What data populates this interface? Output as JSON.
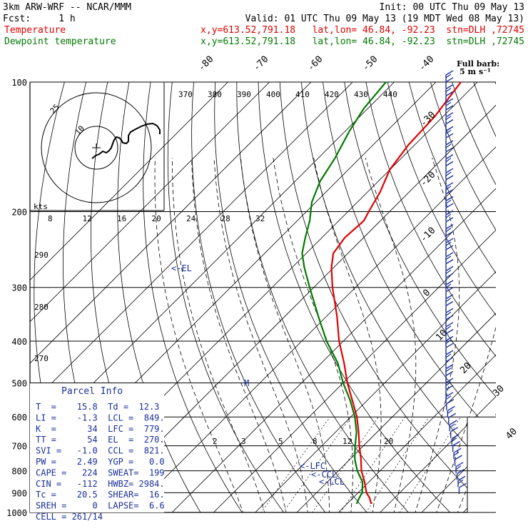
{
  "header": {
    "line1_left": "3km ARW-WRF -- NCAR/MMM",
    "line1_right": "Init: 00 UTC Thu 09 May 13",
    "line2_left": "Fcst:     1 h",
    "line2_right": "Valid: 01 UTC Thu 09 May 13 (19 MDT Wed 08 May 13)",
    "temp_label": "Temperature",
    "temp_info": "x,y=613.52,791.18   lat,lon= 46.84, -92.23  stn=DLH ,72745",
    "dew_label": "Dewpoint temperature",
    "dew_info": "x,y=613.52,791.18   lat,lon= 46.84, -92.23  stn=DLH ,72745"
  },
  "colors": {
    "temperature": "#e00000",
    "dewpoint": "#007a00",
    "wind": "#1a2f9a",
    "index_text": "#1a2f9a"
  },
  "chart_data": {
    "type": "line",
    "title": "",
    "pressure_ticks": [
      100,
      200,
      300,
      400,
      500,
      600,
      700,
      800,
      900,
      1000
    ],
    "pressure_range": [
      1000,
      100
    ],
    "isotherm_labels": [
      "-80",
      "-70",
      "-60",
      "-50",
      "-40",
      "-30",
      "-20",
      "-10",
      "0",
      "10",
      "20",
      "30",
      "40"
    ],
    "theta_labels": [
      "290",
      "280",
      "270"
    ],
    "theta_e_labels": [
      "370",
      "380",
      "390",
      "400",
      "410",
      "420",
      "430",
      "440"
    ],
    "mixing_ratio_labels": [
      "2",
      "3",
      "5",
      "8",
      "12",
      "20"
    ],
    "series": [
      {
        "name": "Temperature",
        "points": [
          [
            955,
            15.8
          ],
          [
            925,
            14.0
          ],
          [
            900,
            12.0
          ],
          [
            850,
            9.0
          ],
          [
            800,
            5.5
          ],
          [
            750,
            2.5
          ],
          [
            700,
            -1.0
          ],
          [
            650,
            -4.5
          ],
          [
            600,
            -8.5
          ],
          [
            550,
            -13.5
          ],
          [
            500,
            -19.0
          ],
          [
            450,
            -24.5
          ],
          [
            400,
            -31.0
          ],
          [
            350,
            -37.5
          ],
          [
            300,
            -45.5
          ],
          [
            270,
            -50.5
          ],
          [
            250,
            -53.5
          ],
          [
            230,
            -54.5
          ],
          [
            210,
            -54.0
          ],
          [
            200,
            -55.0
          ],
          [
            180,
            -57.0
          ],
          [
            160,
            -60.0
          ],
          [
            140,
            -61.5
          ],
          [
            120,
            -62.0
          ],
          [
            100,
            -64.0
          ]
        ]
      },
      {
        "name": "Dewpoint temperature",
        "points": [
          [
            955,
            12.3
          ],
          [
            925,
            11.5
          ],
          [
            900,
            11.0
          ],
          [
            850,
            8.5
          ],
          [
            800,
            4.5
          ],
          [
            750,
            1.0
          ],
          [
            700,
            -2.0
          ],
          [
            650,
            -5.0
          ],
          [
            600,
            -9.0
          ],
          [
            550,
            -14.0
          ],
          [
            500,
            -20.0
          ],
          [
            450,
            -26.0
          ],
          [
            400,
            -34.0
          ],
          [
            350,
            -42.0
          ],
          [
            300,
            -51.0
          ],
          [
            270,
            -57.0
          ],
          [
            250,
            -61.0
          ],
          [
            230,
            -64.0
          ],
          [
            210,
            -67.0
          ],
          [
            190,
            -71.0
          ],
          [
            170,
            -74.0
          ],
          [
            150,
            -76.0
          ],
          [
            130,
            -79.0
          ],
          [
            115,
            -81.0
          ],
          [
            100,
            -82.0
          ]
        ]
      }
    ],
    "levels": {
      "LFC": 779,
      "CCL": 821,
      "LCL": 849,
      "EL": 270
    }
  },
  "level_markers": {
    "el": "<-EL",
    "lfc": "<-LFC",
    "ccl": "<-CCL",
    "lcl": "<-LCL",
    "m": "M"
  },
  "hodograph": {
    "unit": "kts",
    "ring_label": "25",
    "inner_label": "10",
    "speed_ticks": [
      "8",
      "12",
      "16",
      "20",
      "24",
      "28",
      "32"
    ]
  },
  "wind_legend": {
    "line1": "Full barb:",
    "line2": "5 m s⁻¹"
  },
  "parcel_info": {
    "title": "Parcel Info",
    "rows": [
      "T  =    15.8  Td =  12.3",
      "LI =    -1.3  LCL =  849.",
      "K  =      34  LFC =  779.",
      "TT =      54  EL  =  270.",
      "SVI =   -1.0  CCL =  821.",
      "PW =    2.49  YGP =   0.0",
      "CAPE =   224  SWEAT=  199",
      "CIN =   -112  HWBZ= 2984.",
      "Tc =    20.5  SHEAR=  16.",
      "SREH =     0  LAPSE=  6.6",
      "CELL = 261/14"
    ]
  }
}
